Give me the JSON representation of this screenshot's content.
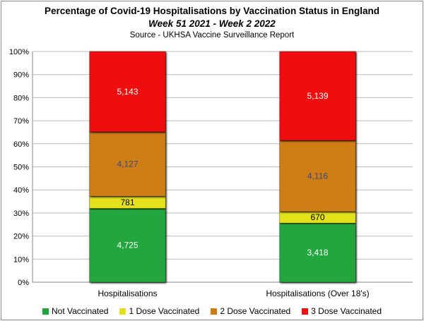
{
  "chart_data": {
    "type": "bar",
    "stacked": "percent",
    "title": "Percentage of Covid-19 Hospitalisations by Vaccination Status in England",
    "subtitle": "Week 51 2021 - Week 2 2022",
    "source": "Source - UKHSA Vaccine Surveillance Report",
    "categories": [
      "Hospitalisations",
      "Hospitalisations (Over 18's)"
    ],
    "series": [
      {
        "name": "Not Vaccinated",
        "values": [
          4725,
          3418
        ],
        "color": "#22a63c",
        "label_color": "#ffffff",
        "labels": [
          "4,725",
          "3,418"
        ]
      },
      {
        "name": "1 Dose Vaccinated",
        "values": [
          781,
          670
        ],
        "color": "#e3e01a",
        "label_color": "#000000",
        "labels": [
          "781",
          "670"
        ]
      },
      {
        "name": "2 Dose Vaccinated",
        "values": [
          4127,
          4116
        ],
        "color": "#cf7d12",
        "label_color": "#3a4a78",
        "labels": [
          "4,127",
          "4,116"
        ]
      },
      {
        "name": "3 Dose Vaccinated",
        "values": [
          5143,
          5139
        ],
        "color": "#f01010",
        "label_color": "#ffffff",
        "labels": [
          "5,143",
          "5,139"
        ]
      }
    ],
    "ylim": [
      0,
      100
    ],
    "yticks": [
      "0%",
      "10%",
      "20%",
      "30%",
      "40%",
      "50%",
      "60%",
      "70%",
      "80%",
      "90%",
      "100%"
    ],
    "grid": true,
    "legend_position": "bottom"
  }
}
